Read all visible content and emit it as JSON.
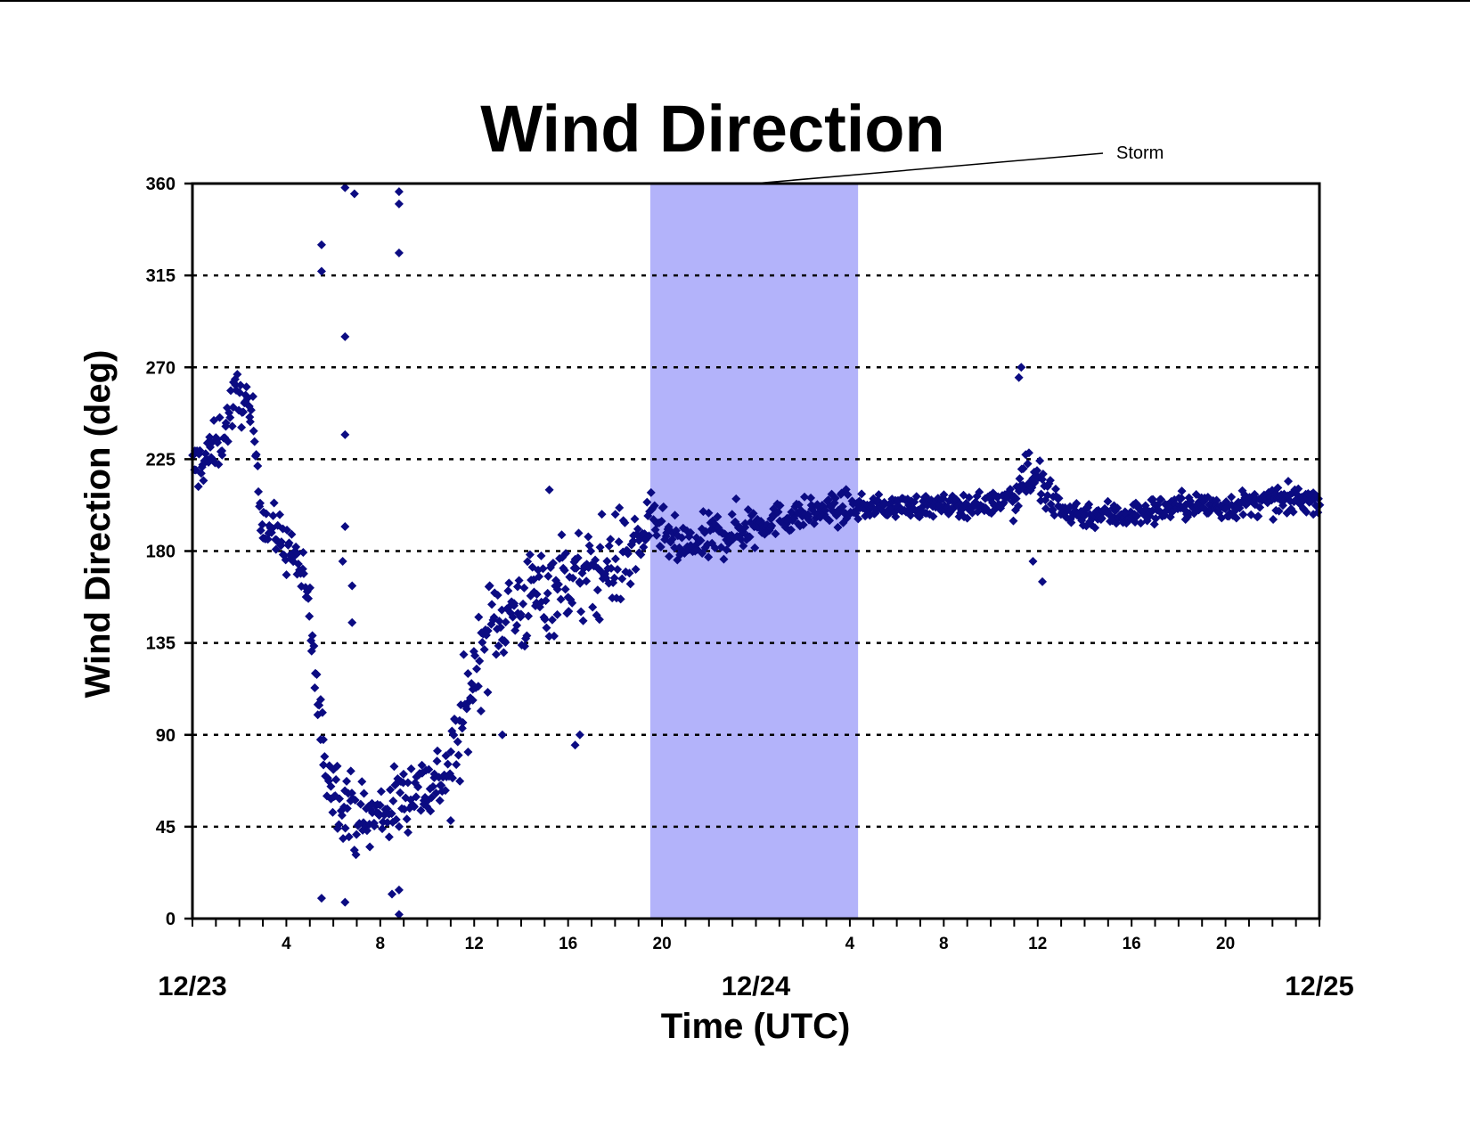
{
  "chart_data": {
    "type": "scatter",
    "title": "Wind Direction",
    "xlabel": "Time (UTC)",
    "ylabel": "Wind Direction (deg)",
    "ylim": [
      0,
      360
    ],
    "y_ticks": [
      "0",
      "45",
      "90",
      "135",
      "180",
      "225",
      "270",
      "315",
      "360"
    ],
    "xlim_hours": [
      0,
      48
    ],
    "x_tick_labels": [
      {
        "hour": 4,
        "label": "4"
      },
      {
        "hour": 8,
        "label": "8"
      },
      {
        "hour": 12,
        "label": "12"
      },
      {
        "hour": 16,
        "label": "16"
      },
      {
        "hour": 20,
        "label": "20"
      },
      {
        "hour": 28,
        "label": "4"
      },
      {
        "hour": 32,
        "label": "8"
      },
      {
        "hour": 36,
        "label": "12"
      },
      {
        "hour": 40,
        "label": "16"
      },
      {
        "hour": 44,
        "label": "20"
      }
    ],
    "date_labels": [
      {
        "hour": 0,
        "label": "12/23"
      },
      {
        "hour": 24,
        "label": "12/24"
      },
      {
        "hour": 48,
        "label": "12/25"
      }
    ],
    "gridlines": "dashed horizontal",
    "marker": {
      "shape": "diamond",
      "color": "#0b0b82"
    },
    "storm_band": {
      "label": "Storm",
      "x_start_hour": 19.5,
      "x_end_hour": 28.35,
      "color": "#b3b3fa"
    },
    "series": [
      {
        "trend": [
          [
            0.0,
            220
          ],
          [
            0.5,
            225
          ],
          [
            1.0,
            230
          ],
          [
            1.4,
            240
          ],
          [
            1.8,
            255
          ],
          [
            2.2,
            255
          ],
          [
            2.6,
            240
          ],
          [
            3.0,
            195
          ],
          [
            3.6,
            188
          ],
          [
            4.0,
            182
          ],
          [
            4.5,
            175
          ],
          [
            5.0,
            150
          ],
          [
            5.3,
            110
          ],
          [
            5.6,
            80
          ],
          [
            6.0,
            65
          ],
          [
            6.5,
            58
          ],
          [
            7.0,
            50
          ],
          [
            7.5,
            48
          ],
          [
            8.0,
            52
          ],
          [
            8.5,
            55
          ],
          [
            9.0,
            60
          ],
          [
            9.5,
            65
          ],
          [
            10.0,
            65
          ],
          [
            10.5,
            68
          ],
          [
            11.0,
            75
          ],
          [
            11.5,
            95
          ],
          [
            12.0,
            120
          ],
          [
            12.5,
            140
          ],
          [
            13.0,
            148
          ],
          [
            13.5,
            150
          ],
          [
            14.0,
            152
          ],
          [
            14.5,
            158
          ],
          [
            15.0,
            160
          ],
          [
            15.5,
            165
          ],
          [
            16.0,
            168
          ],
          [
            16.5,
            165
          ],
          [
            17.0,
            168
          ],
          [
            17.5,
            172
          ],
          [
            18.0,
            175
          ],
          [
            18.5,
            178
          ],
          [
            19.0,
            182
          ],
          [
            19.5,
            195
          ],
          [
            20.0,
            190
          ],
          [
            20.5,
            183
          ],
          [
            21.0,
            182
          ],
          [
            21.5,
            183
          ],
          [
            22.0,
            186
          ],
          [
            22.5,
            188
          ],
          [
            23.0,
            190
          ],
          [
            23.5,
            192
          ],
          [
            24.0,
            193
          ],
          [
            25.0,
            196
          ],
          [
            26.0,
            198
          ],
          [
            27.0,
            200
          ],
          [
            28.0,
            201
          ],
          [
            30.0,
            202
          ],
          [
            32.0,
            202
          ],
          [
            34.0,
            203
          ],
          [
            35.0,
            208
          ],
          [
            35.5,
            220
          ],
          [
            36.0,
            215
          ],
          [
            36.5,
            205
          ],
          [
            37.0,
            200
          ],
          [
            38.0,
            198
          ],
          [
            40.0,
            198
          ],
          [
            42.0,
            202
          ],
          [
            44.0,
            202
          ],
          [
            46.0,
            204
          ],
          [
            48.0,
            206
          ]
        ],
        "outliers": [
          [
            5.5,
            330
          ],
          [
            5.5,
            317
          ],
          [
            6.5,
            358
          ],
          [
            6.9,
            355
          ],
          [
            8.8,
            356
          ],
          [
            8.8,
            350
          ],
          [
            8.8,
            326
          ],
          [
            6.5,
            285
          ],
          [
            6.5,
            237
          ],
          [
            6.5,
            192
          ],
          [
            6.4,
            175
          ],
          [
            6.8,
            163
          ],
          [
            6.8,
            145
          ],
          [
            5.5,
            10
          ],
          [
            6.5,
            8
          ],
          [
            8.8,
            14
          ],
          [
            8.8,
            2
          ],
          [
            8.5,
            12
          ],
          [
            16.3,
            85
          ],
          [
            16.5,
            90
          ],
          [
            11.0,
            48
          ],
          [
            36.2,
            165
          ],
          [
            35.8,
            175
          ],
          [
            35.2,
            265
          ],
          [
            35.3,
            270
          ],
          [
            15.2,
            210
          ],
          [
            13.2,
            90
          ]
        ]
      }
    ]
  }
}
